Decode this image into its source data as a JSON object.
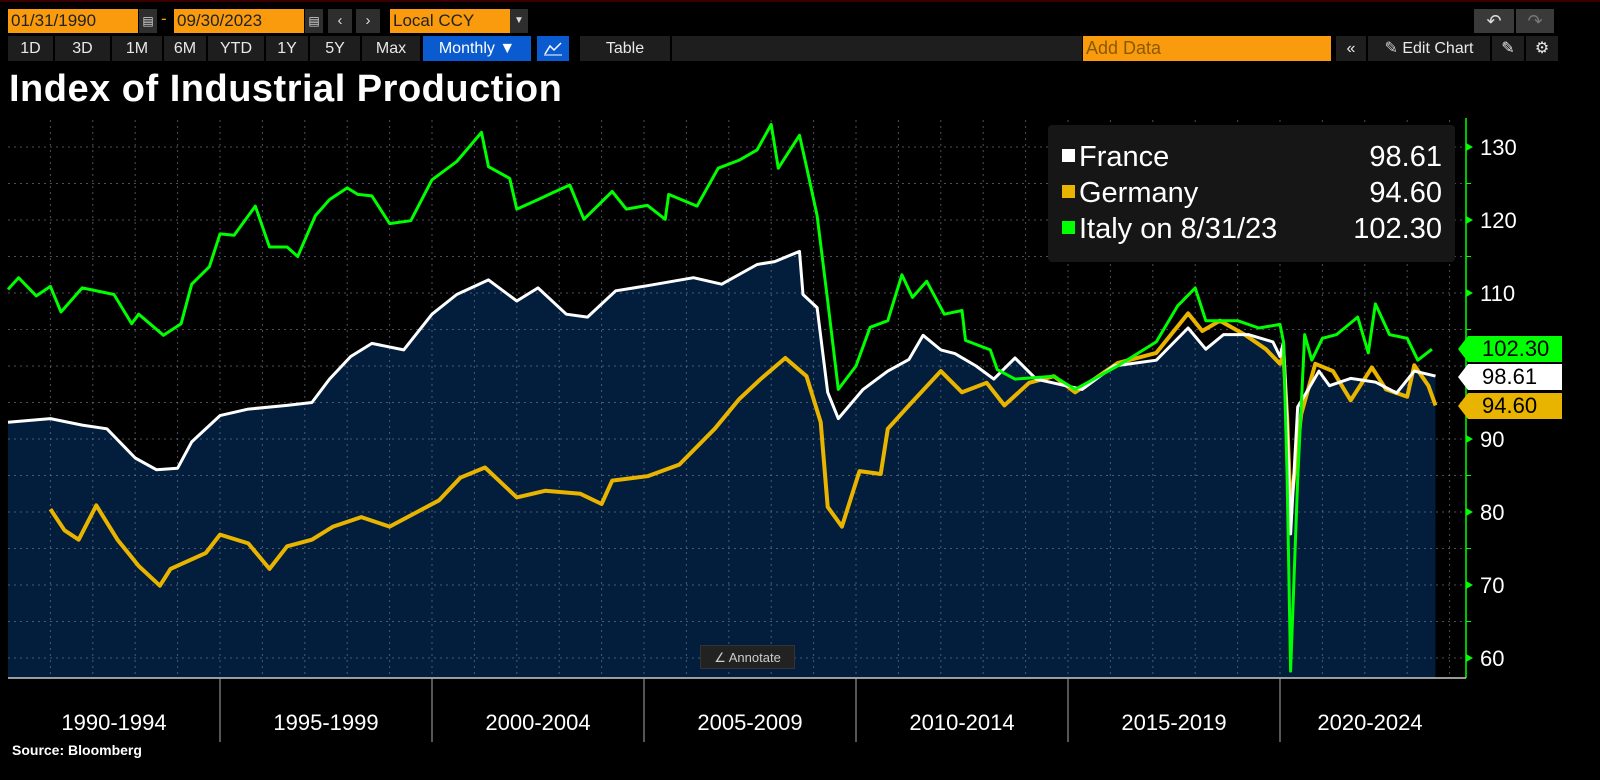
{
  "toolbar": {
    "start_date": "01/31/1990",
    "date_sep": "-",
    "end_date": "09/30/2023",
    "currency": "Local CCY",
    "ranges": [
      "1D",
      "3D",
      "1M",
      "6M",
      "YTD",
      "1Y",
      "5Y",
      "Max"
    ],
    "frequency": "Monthly ▼",
    "table_label": "Table",
    "add_data_placeholder": "Add Data",
    "edit_chart_label": "Edit Chart",
    "icons": {
      "calendar": "calendar-icon",
      "prev": "chevron-left-icon",
      "next": "chevron-right-icon",
      "dropdown": "caret-down-icon",
      "line_chart": "line-chart-icon",
      "collapse": "double-chevron-left-icon",
      "pencil": "pencil-icon",
      "notes": "edit-notes-icon",
      "settings": "gear-icon",
      "undo": "undo-icon",
      "redo": "redo-icon"
    }
  },
  "annotate_label": "Annotate",
  "source": "Source: Bloomberg",
  "chart_data": {
    "type": "line",
    "title": "Index of Industrial Production",
    "y_axis": {
      "position": "right",
      "min": 58,
      "max": 133,
      "ticks": [
        60,
        70,
        80,
        90,
        100,
        110,
        120,
        130
      ],
      "tick_labels": [
        "60",
        "70",
        "80",
        "90",
        "",
        "110",
        "120",
        "130"
      ]
    },
    "x_axis": {
      "min": "1990-01",
      "max": "2024-12",
      "period_labels": [
        "1990-1994",
        "1995-1999",
        "2000-2004",
        "2005-2009",
        "2010-2014",
        "2015-2019",
        "2020-2024"
      ]
    },
    "grid": true,
    "legend": "top-right",
    "series": [
      {
        "name": "France",
        "legend_label": "France",
        "last_value": "98.61",
        "color": "#ffffff",
        "area_fill": "#021e3c",
        "points": [
          [
            "1990-01",
            92.3
          ],
          [
            "1991-01",
            92.8
          ],
          [
            "1991-10",
            91.9
          ],
          [
            "1992-05",
            91.4
          ],
          [
            "1993-01",
            87.4
          ],
          [
            "1993-07",
            85.8
          ],
          [
            "1994-01",
            86
          ],
          [
            "1994-05",
            89.6
          ],
          [
            "1995-01",
            93.2
          ],
          [
            "1995-09",
            94.1
          ],
          [
            "1996-08",
            94.6
          ],
          [
            "1997-03",
            95
          ],
          [
            "1997-08",
            98.2
          ],
          [
            "1998-02",
            101.3
          ],
          [
            "1998-08",
            103.1
          ],
          [
            "1999-05",
            102.2
          ],
          [
            "2000-01",
            107.1
          ],
          [
            "2000-08",
            109.8
          ],
          [
            "2001-05",
            111.8
          ],
          [
            "2002-01",
            108.9
          ],
          [
            "2002-07",
            110.7
          ],
          [
            "2003-03",
            107.1
          ],
          [
            "2003-09",
            106.7
          ],
          [
            "2004-05",
            110.3
          ],
          [
            "2005-02",
            111
          ],
          [
            "2006-03",
            112.1
          ],
          [
            "2006-11",
            111.2
          ],
          [
            "2007-09",
            113.9
          ],
          [
            "2008-02",
            114.3
          ],
          [
            "2008-09",
            115.7
          ],
          [
            "2008-10",
            109.8
          ],
          [
            "2009-02",
            108
          ],
          [
            "2009-05",
            96.4
          ],
          [
            "2009-08",
            92.8
          ],
          [
            "2010-03",
            96.8
          ],
          [
            "2010-10",
            99.3
          ],
          [
            "2011-04",
            100.9
          ],
          [
            "2011-08",
            104.2
          ],
          [
            "2012-01",
            102.2
          ],
          [
            "2012-05",
            101.7
          ],
          [
            "2012-11",
            100
          ],
          [
            "2013-04",
            98.2
          ],
          [
            "2013-10",
            101.1
          ],
          [
            "2014-04",
            98.2
          ],
          [
            "2015-05",
            96.8
          ],
          [
            "2016-02",
            100
          ],
          [
            "2017-02",
            100.8
          ],
          [
            "2017-11",
            105.2
          ],
          [
            "2018-04",
            102.3
          ],
          [
            "2018-09",
            104.3
          ],
          [
            "2019-04",
            104.3
          ],
          [
            "2019-11",
            103.3
          ],
          [
            "2020-01",
            101.3
          ],
          [
            "2020-02",
            103.3
          ],
          [
            "2020-03",
            92
          ],
          [
            "2020-04",
            77
          ],
          [
            "2020-06",
            94.4
          ],
          [
            "2020-09",
            96.8
          ],
          [
            "2020-12",
            99.3
          ],
          [
            "2021-03",
            97.3
          ],
          [
            "2021-09",
            98.3
          ],
          [
            "2022-04",
            97.8
          ],
          [
            "2022-10",
            96.3
          ],
          [
            "2023-03",
            99.3
          ],
          [
            "2023-09",
            98.61
          ]
        ]
      },
      {
        "name": "Germany",
        "legend_label": "Germany",
        "last_value": "94.60",
        "color": "#e8b400",
        "points": [
          [
            "1991-01",
            80.4
          ],
          [
            "1991-05",
            77.5
          ],
          [
            "1991-09",
            76.2
          ],
          [
            "1992-02",
            80.9
          ],
          [
            "1992-08",
            76.2
          ],
          [
            "1993-02",
            72.6
          ],
          [
            "1993-08",
            69.9
          ],
          [
            "1993-11",
            72.2
          ],
          [
            "1994-09",
            74.4
          ],
          [
            "1995-01",
            76.9
          ],
          [
            "1995-09",
            75.7
          ],
          [
            "1996-03",
            72.2
          ],
          [
            "1996-08",
            75.3
          ],
          [
            "1997-03",
            76.2
          ],
          [
            "1997-09",
            78
          ],
          [
            "1998-05",
            79.3
          ],
          [
            "1999-01",
            78
          ],
          [
            "1999-08",
            79.8
          ],
          [
            "2000-03",
            81.6
          ],
          [
            "2000-09",
            84.7
          ],
          [
            "2001-04",
            86.1
          ],
          [
            "2002-01",
            82
          ],
          [
            "2002-09",
            82.9
          ],
          [
            "2003-07",
            82.5
          ],
          [
            "2004-01",
            81.1
          ],
          [
            "2004-04",
            84.3
          ],
          [
            "2005-02",
            84.9
          ],
          [
            "2005-11",
            86.5
          ],
          [
            "2006-09",
            91.4
          ],
          [
            "2007-04",
            95.5
          ],
          [
            "2007-10",
            98.2
          ],
          [
            "2008-05",
            101.1
          ],
          [
            "2008-11",
            98.6
          ],
          [
            "2009-03",
            92.3
          ],
          [
            "2009-05",
            80.7
          ],
          [
            "2009-09",
            78
          ],
          [
            "2010-02",
            85.6
          ],
          [
            "2010-08",
            85.2
          ],
          [
            "2010-10",
            91.4
          ],
          [
            "2011-04",
            94.6
          ],
          [
            "2012-01",
            99.3
          ],
          [
            "2012-07",
            96.4
          ],
          [
            "2013-02",
            97.7
          ],
          [
            "2013-07",
            94.6
          ],
          [
            "2014-02",
            97.7
          ],
          [
            "2014-09",
            98.6
          ],
          [
            "2015-03",
            96.4
          ],
          [
            "2016-03",
            100.4
          ],
          [
            "2017-02",
            101.8
          ],
          [
            "2017-11",
            107.2
          ],
          [
            "2018-03",
            104.8
          ],
          [
            "2018-08",
            106.2
          ],
          [
            "2019-03",
            104.3
          ],
          [
            "2019-09",
            102.3
          ],
          [
            "2020-01",
            100.3
          ],
          [
            "2020-02",
            101.5
          ],
          [
            "2020-03",
            93
          ],
          [
            "2020-04",
            80.5
          ],
          [
            "2020-07",
            93.4
          ],
          [
            "2020-11",
            100.3
          ],
          [
            "2021-04",
            99.3
          ],
          [
            "2021-09",
            95.3
          ],
          [
            "2022-03",
            99.8
          ],
          [
            "2022-07",
            96.8
          ],
          [
            "2023-01",
            95.8
          ],
          [
            "2023-03",
            100.1
          ],
          [
            "2023-07",
            97.3
          ],
          [
            "2023-09",
            94.6
          ]
        ]
      },
      {
        "name": "Italy",
        "legend_label": "Italy on 8/31/23",
        "last_value": "102.30",
        "color": "#00ff00",
        "points": [
          [
            "1990-01",
            110.5
          ],
          [
            "1990-04",
            112.1
          ],
          [
            "1990-09",
            109.6
          ],
          [
            "1991-01",
            110.9
          ],
          [
            "1991-04",
            107.4
          ],
          [
            "1991-10",
            110.7
          ],
          [
            "1992-07",
            109.8
          ],
          [
            "1992-12",
            105.8
          ],
          [
            "1993-02",
            107.1
          ],
          [
            "1993-09",
            104.2
          ],
          [
            "1994-02",
            105.8
          ],
          [
            "1994-05",
            111.2
          ],
          [
            "1994-10",
            113.6
          ],
          [
            "1995-01",
            118.1
          ],
          [
            "1995-05",
            117.9
          ],
          [
            "1995-08",
            119.9
          ],
          [
            "1995-11",
            121.9
          ],
          [
            "1996-03",
            116.3
          ],
          [
            "1996-08",
            116.3
          ],
          [
            "1996-11",
            115
          ],
          [
            "1997-04",
            120.6
          ],
          [
            "1997-08",
            122.8
          ],
          [
            "1998-01",
            124.4
          ],
          [
            "1998-04",
            123.5
          ],
          [
            "1998-08",
            123.3
          ],
          [
            "1999-01",
            119.5
          ],
          [
            "1999-07",
            119.9
          ],
          [
            "2000-01",
            125.5
          ],
          [
            "2000-08",
            128
          ],
          [
            "2001-03",
            132
          ],
          [
            "2001-05",
            127.3
          ],
          [
            "2001-11",
            125.7
          ],
          [
            "2002-01",
            121.5
          ],
          [
            "2002-07",
            122.8
          ],
          [
            "2002-11",
            123.7
          ],
          [
            "2003-04",
            124.8
          ],
          [
            "2003-08",
            120.1
          ],
          [
            "2004-04",
            123.9
          ],
          [
            "2004-08",
            121.5
          ],
          [
            "2005-02",
            122
          ],
          [
            "2005-07",
            120.1
          ],
          [
            "2005-08",
            123.5
          ],
          [
            "2006-04",
            121.9
          ],
          [
            "2006-10",
            127.1
          ],
          [
            "2007-04",
            128.2
          ],
          [
            "2007-09",
            129.6
          ],
          [
            "2008-01",
            133.1
          ],
          [
            "2008-03",
            127.1
          ],
          [
            "2008-09",
            131.6
          ],
          [
            "2008-11",
            127.3
          ],
          [
            "2009-02",
            120.6
          ],
          [
            "2009-05",
            108.9
          ],
          [
            "2009-08",
            96.8
          ],
          [
            "2010-01",
            100
          ],
          [
            "2010-05",
            105.3
          ],
          [
            "2010-10",
            106.2
          ],
          [
            "2011-02",
            112.5
          ],
          [
            "2011-05",
            109.4
          ],
          [
            "2011-09",
            111.6
          ],
          [
            "2012-02",
            107.1
          ],
          [
            "2012-07",
            107.6
          ],
          [
            "2012-08",
            103.5
          ],
          [
            "2013-03",
            102.2
          ],
          [
            "2013-05",
            99.5
          ],
          [
            "2013-10",
            98.2
          ],
          [
            "2014-09",
            98.6
          ],
          [
            "2015-03",
            96.8
          ],
          [
            "2016-03",
            100
          ],
          [
            "2017-02",
            103.3
          ],
          [
            "2017-08",
            108.2
          ],
          [
            "2018-01",
            110.7
          ],
          [
            "2018-04",
            106.2
          ],
          [
            "2019-01",
            106.2
          ],
          [
            "2019-07",
            105.2
          ],
          [
            "2020-01",
            105.7
          ],
          [
            "2020-02",
            103.3
          ],
          [
            "2020-03",
            85
          ],
          [
            "2020-04",
            58.2
          ],
          [
            "2020-06",
            84.5
          ],
          [
            "2020-08",
            104.3
          ],
          [
            "2020-10",
            100.8
          ],
          [
            "2021-01",
            103.8
          ],
          [
            "2021-05",
            104.3
          ],
          [
            "2021-11",
            106.7
          ],
          [
            "2022-02",
            101.8
          ],
          [
            "2022-04",
            108.5
          ],
          [
            "2022-08",
            104.3
          ],
          [
            "2023-01",
            103.8
          ],
          [
            "2023-04",
            100.8
          ],
          [
            "2023-08",
            102.3
          ]
        ]
      }
    ]
  }
}
